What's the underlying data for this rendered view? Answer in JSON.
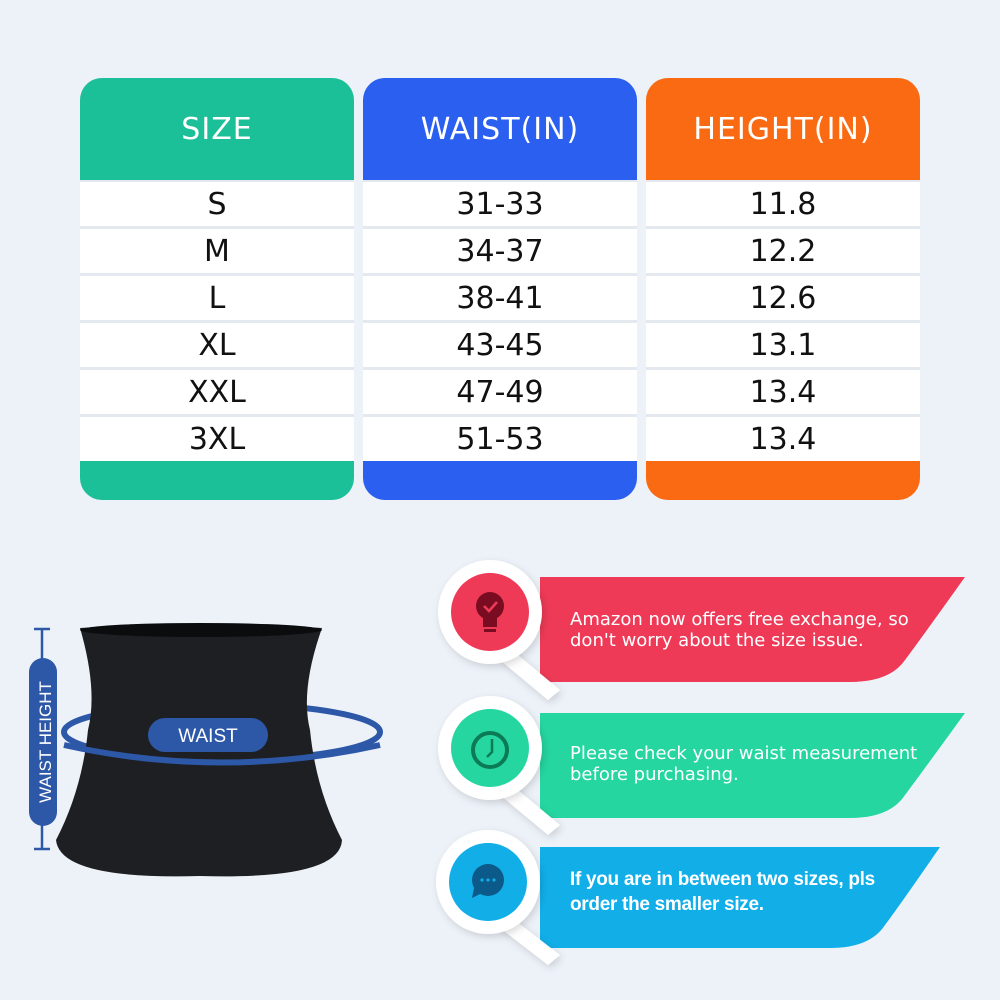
{
  "colors": {
    "size": "#1bbf98",
    "waist": "#2a5ff0",
    "height": "#fa6a12",
    "tip1": "#ee3a57",
    "tip2": "#25d6a0",
    "tip3": "#11aee8",
    "accent": "#2d58a8"
  },
  "table": {
    "headers": [
      "SIZE",
      "WAIST(IN)",
      "HEIGHT(IN)"
    ],
    "rows": [
      [
        "S",
        "31-33",
        "11.8"
      ],
      [
        "M",
        "34-37",
        "12.2"
      ],
      [
        "L",
        "38-41",
        "12.6"
      ],
      [
        "XL",
        "43-45",
        "13.1"
      ],
      [
        "XXL",
        "47-49",
        "13.4"
      ],
      [
        "3XL",
        "51-53",
        "13.4"
      ]
    ]
  },
  "diagram": {
    "waist_label": "WAIST",
    "height_label": "WAIST HEIGHT"
  },
  "tips": [
    {
      "icon": "lightbulb-check-icon",
      "text": "Amazon now offers free exchange, so don't worry about the size issue."
    },
    {
      "icon": "clock-icon",
      "text": "Please check your waist measurement before purchasing."
    },
    {
      "icon": "chat-bubble-icon",
      "text": "If you are in between two sizes, pls order the smaller size."
    }
  ]
}
